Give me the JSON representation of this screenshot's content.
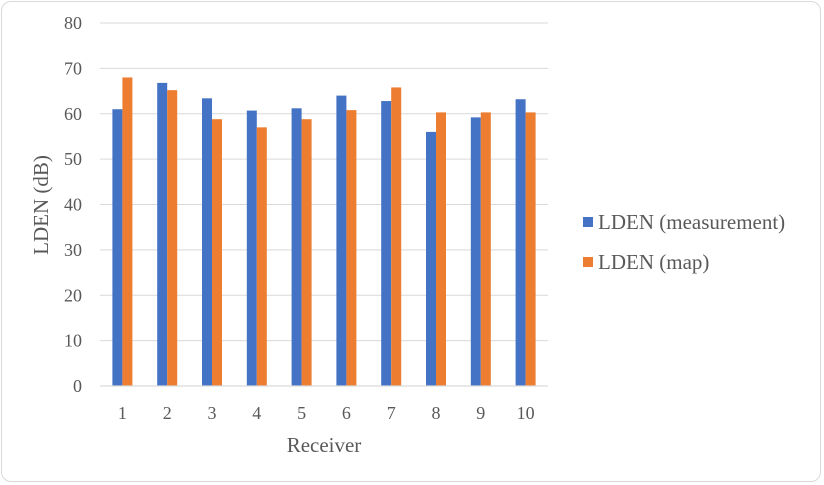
{
  "chart_data": {
    "type": "bar",
    "categories": [
      "1",
      "2",
      "3",
      "4",
      "5",
      "6",
      "7",
      "8",
      "9",
      "10"
    ],
    "series": [
      {
        "name": "LDEN (measurement)",
        "color": "#4472c4",
        "values": [
          61.0,
          66.8,
          63.4,
          60.7,
          61.2,
          64.0,
          62.8,
          56.0,
          59.2,
          63.2
        ]
      },
      {
        "name": "LDEN (map)",
        "color": "#ed7d31",
        "values": [
          68.0,
          65.2,
          58.8,
          57.0,
          58.8,
          60.8,
          65.8,
          60.3,
          60.3,
          60.3
        ]
      }
    ],
    "xlabel": "Receiver",
    "ylabel": "LDEN (dB)",
    "ylim": [
      0,
      80
    ],
    "yticks": [
      0,
      10,
      20,
      30,
      40,
      50,
      60,
      70,
      80
    ],
    "grid": true,
    "legend": "right"
  }
}
